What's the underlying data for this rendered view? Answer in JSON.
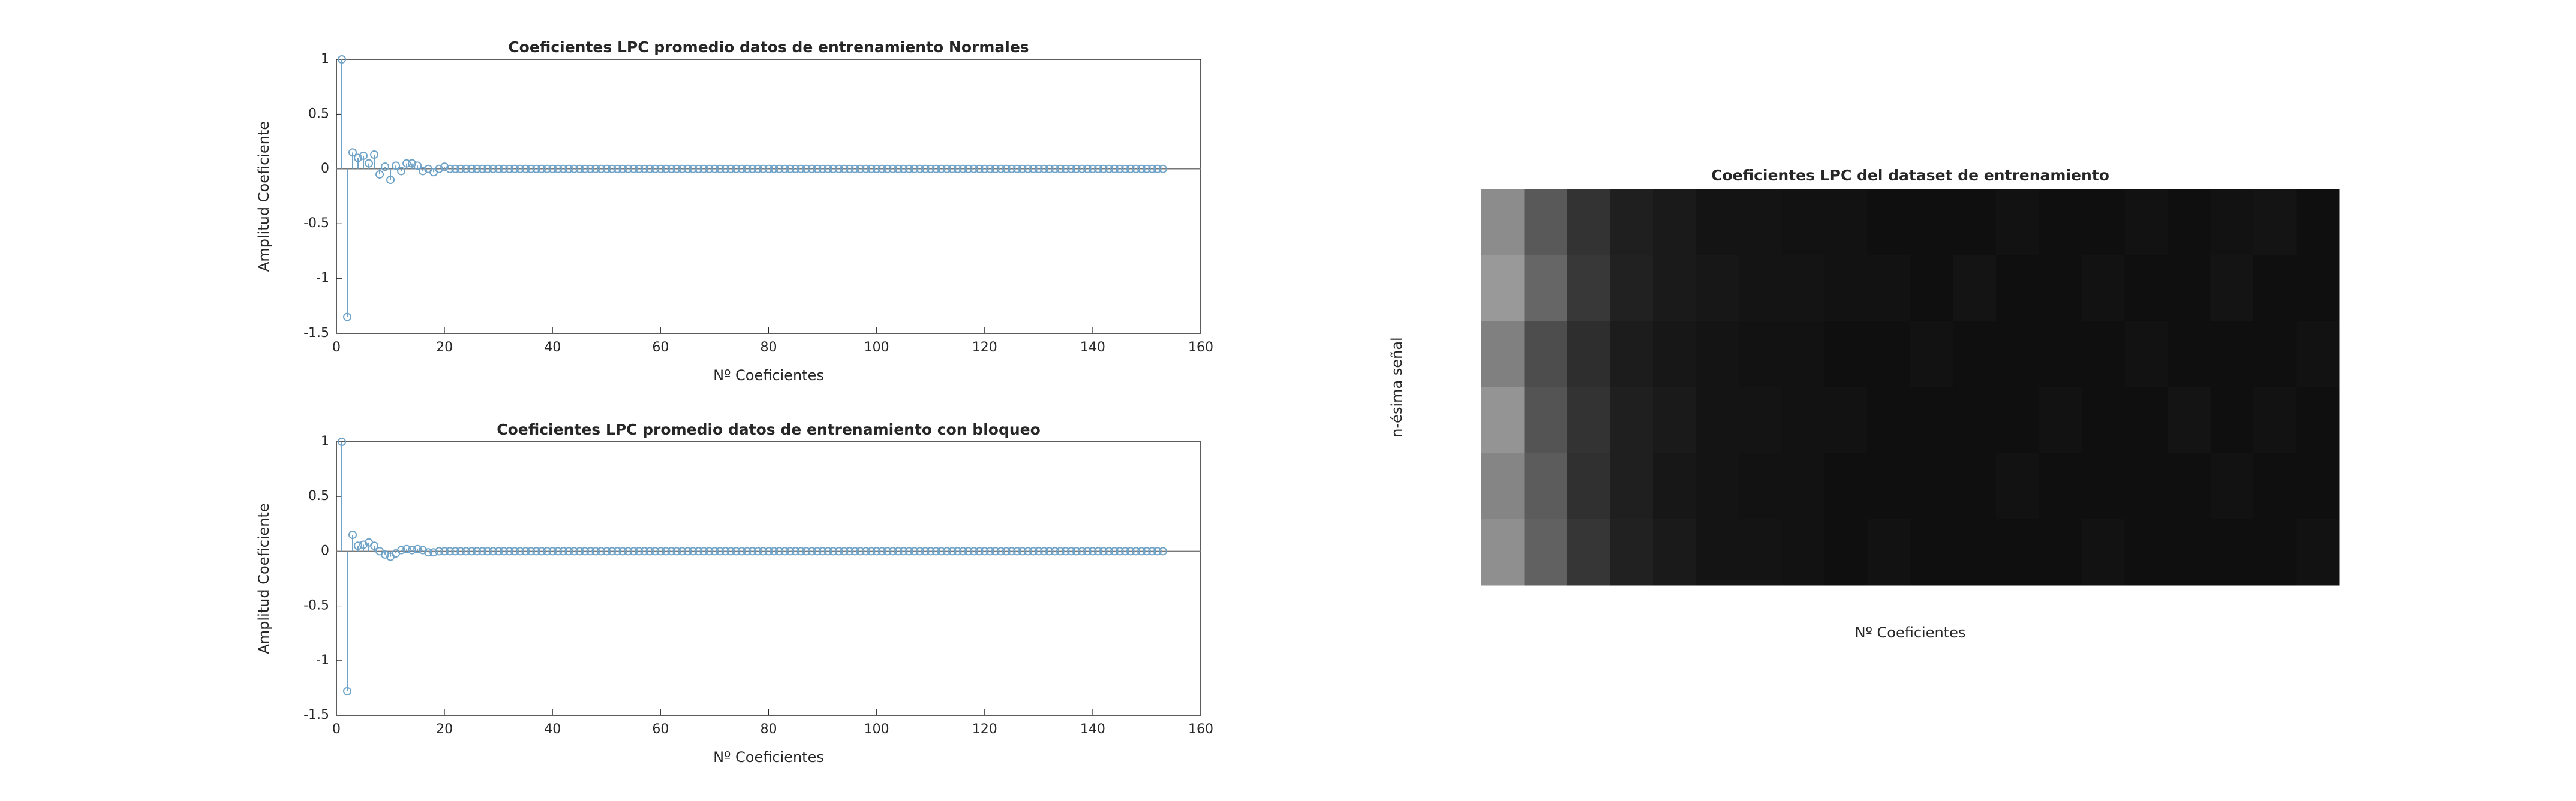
{
  "chart_data": [
    {
      "type": "stem",
      "title": "Coeficientes LPC promedio datos de entrenamiento Normales",
      "xlabel": "Nº Coeficientes",
      "ylabel": "Amplitud Coeficiente",
      "color": "#6fa3c8",
      "xlim": [
        0,
        160
      ],
      "ylim": [
        -1.5,
        1
      ],
      "xticks": [
        0,
        20,
        40,
        60,
        80,
        100,
        120,
        140,
        160
      ],
      "yticks": [
        -1.5,
        -1,
        -0.5,
        0,
        0.5,
        1
      ],
      "x": [
        1,
        2,
        3,
        4,
        5,
        6,
        7,
        8,
        9,
        10,
        11,
        12,
        13,
        14,
        15,
        16,
        17,
        18,
        19,
        20,
        21,
        22,
        23,
        24,
        25,
        26,
        27,
        28,
        29,
        30,
        31,
        32,
        33,
        34,
        35,
        36,
        37,
        38,
        39,
        40,
        41,
        42,
        43,
        44,
        45,
        46,
        47,
        48,
        49,
        50,
        51,
        52,
        53,
        54,
        55,
        56,
        57,
        58,
        59,
        60,
        61,
        62,
        63,
        64,
        65,
        66,
        67,
        68,
        69,
        70,
        71,
        72,
        73,
        74,
        75,
        76,
        77,
        78,
        79,
        80,
        81,
        82,
        83,
        84,
        85,
        86,
        87,
        88,
        89,
        90,
        91,
        92,
        93,
        94,
        95,
        96,
        97,
        98,
        99,
        100,
        101,
        102,
        103,
        104,
        105,
        106,
        107,
        108,
        109,
        110,
        111,
        112,
        113,
        114,
        115,
        116,
        117,
        118,
        119,
        120,
        121,
        122,
        123,
        124,
        125,
        126,
        127,
        128,
        129,
        130,
        131,
        132,
        133,
        134,
        135,
        136,
        137,
        138,
        139,
        140,
        141,
        142,
        143,
        144,
        145,
        146,
        147,
        148,
        149,
        150,
        151,
        152,
        153
      ],
      "values": [
        1,
        -1.35,
        0.15,
        0.1,
        0.12,
        0.05,
        0.13,
        -0.05,
        0.02,
        -0.1,
        0.03,
        -0.02,
        0.05,
        0.05,
        0.03,
        -0.02,
        0,
        -0.03,
        0,
        0.02,
        0,
        0,
        0,
        0,
        0,
        0,
        0,
        0,
        0,
        0,
        0,
        0,
        0,
        0,
        0,
        0,
        0,
        0,
        0,
        0,
        0,
        0,
        0,
        0,
        0,
        0,
        0,
        0,
        0,
        0,
        0,
        0,
        0,
        0,
        0,
        0,
        0,
        0,
        0,
        0,
        0,
        0,
        0,
        0,
        0,
        0,
        0,
        0,
        0,
        0,
        0,
        0,
        0,
        0,
        0,
        0,
        0,
        0,
        0,
        0,
        0,
        0,
        0,
        0,
        0,
        0,
        0,
        0,
        0,
        0,
        0,
        0,
        0,
        0,
        0,
        0,
        0,
        0,
        0,
        0,
        0,
        0,
        0,
        0,
        0,
        0,
        0,
        0,
        0,
        0,
        0,
        0,
        0,
        0,
        0,
        0,
        0,
        0,
        0,
        0,
        0,
        0,
        0,
        0,
        0,
        0,
        0,
        0,
        0,
        0,
        0,
        0,
        0,
        0,
        0,
        0,
        0,
        0,
        0,
        0,
        0,
        0,
        0,
        0,
        0,
        0,
        0,
        0,
        0,
        0,
        0,
        0,
        0
      ]
    },
    {
      "type": "stem",
      "title": "Coeficientes LPC promedio datos de entrenamiento con bloqueo",
      "xlabel": "Nº Coeficientes",
      "ylabel": "Amplitud Coeficiente",
      "color": "#6fa3c8",
      "xlim": [
        0,
        160
      ],
      "ylim": [
        -1.5,
        1
      ],
      "xticks": [
        0,
        20,
        40,
        60,
        80,
        100,
        120,
        140,
        160
      ],
      "yticks": [
        -1.5,
        -1,
        -0.5,
        0,
        0.5,
        1
      ],
      "x": [
        1,
        2,
        3,
        4,
        5,
        6,
        7,
        8,
        9,
        10,
        11,
        12,
        13,
        14,
        15,
        16,
        17,
        18,
        19,
        20,
        21,
        22,
        23,
        24,
        25,
        26,
        27,
        28,
        29,
        30,
        31,
        32,
        33,
        34,
        35,
        36,
        37,
        38,
        39,
        40,
        41,
        42,
        43,
        44,
        45,
        46,
        47,
        48,
        49,
        50,
        51,
        52,
        53,
        54,
        55,
        56,
        57,
        58,
        59,
        60,
        61,
        62,
        63,
        64,
        65,
        66,
        67,
        68,
        69,
        70,
        71,
        72,
        73,
        74,
        75,
        76,
        77,
        78,
        79,
        80,
        81,
        82,
        83,
        84,
        85,
        86,
        87,
        88,
        89,
        90,
        91,
        92,
        93,
        94,
        95,
        96,
        97,
        98,
        99,
        100,
        101,
        102,
        103,
        104,
        105,
        106,
        107,
        108,
        109,
        110,
        111,
        112,
        113,
        114,
        115,
        116,
        117,
        118,
        119,
        120,
        121,
        122,
        123,
        124,
        125,
        126,
        127,
        128,
        129,
        130,
        131,
        132,
        133,
        134,
        135,
        136,
        137,
        138,
        139,
        140,
        141,
        142,
        143,
        144,
        145,
        146,
        147,
        148,
        149,
        150,
        151,
        152,
        153
      ],
      "values": [
        1,
        -1.28,
        0.15,
        0.05,
        0.06,
        0.08,
        0.05,
        0,
        -0.03,
        -0.05,
        -0.02,
        0.01,
        0.02,
        0.01,
        0.02,
        0.01,
        -0.01,
        -0.01,
        0,
        0,
        0,
        0,
        0,
        0,
        0,
        0,
        0,
        0,
        0,
        0,
        0,
        0,
        0,
        0,
        0,
        0,
        0,
        0,
        0,
        0,
        0,
        0,
        0,
        0,
        0,
        0,
        0,
        0,
        0,
        0,
        0,
        0,
        0,
        0,
        0,
        0,
        0,
        0,
        0,
        0,
        0,
        0,
        0,
        0,
        0,
        0,
        0,
        0,
        0,
        0,
        0,
        0,
        0,
        0,
        0,
        0,
        0,
        0,
        0,
        0,
        0,
        0,
        0,
        0,
        0,
        0,
        0,
        0,
        0,
        0,
        0,
        0,
        0,
        0,
        0,
        0,
        0,
        0,
        0,
        0,
        0,
        0,
        0,
        0,
        0,
        0,
        0,
        0,
        0,
        0,
        0,
        0,
        0,
        0,
        0,
        0,
        0,
        0,
        0,
        0,
        0,
        0,
        0,
        0,
        0,
        0,
        0,
        0,
        0,
        0,
        0,
        0,
        0,
        0,
        0,
        0,
        0,
        0,
        0,
        0,
        0,
        0,
        0,
        0,
        0,
        0,
        0,
        0,
        0,
        0,
        0,
        0,
        0
      ]
    },
    {
      "type": "heatmap",
      "title": "Coeficientes LPC del dataset de entrenamiento",
      "xlabel": "Nº Coeficientes",
      "ylabel": "n-ésima señal",
      "z": [
        [
          0.55,
          0.35,
          0.2,
          0.12,
          0.1,
          0.08,
          0.08,
          0.07,
          0.07,
          0.06,
          0.06,
          0.06,
          0.07,
          0.06,
          0.06,
          0.07,
          0.06,
          0.07,
          0.08,
          0.06
        ],
        [
          0.6,
          0.4,
          0.22,
          0.13,
          0.1,
          0.09,
          0.08,
          0.08,
          0.07,
          0.07,
          0.06,
          0.08,
          0.06,
          0.06,
          0.07,
          0.06,
          0.06,
          0.08,
          0.06,
          0.06
        ],
        [
          0.5,
          0.3,
          0.18,
          0.11,
          0.09,
          0.08,
          0.07,
          0.07,
          0.06,
          0.06,
          0.07,
          0.06,
          0.06,
          0.06,
          0.06,
          0.07,
          0.06,
          0.06,
          0.06,
          0.07
        ],
        [
          0.58,
          0.33,
          0.2,
          0.12,
          0.1,
          0.08,
          0.08,
          0.07,
          0.07,
          0.06,
          0.06,
          0.06,
          0.06,
          0.07,
          0.06,
          0.06,
          0.08,
          0.06,
          0.07,
          0.06
        ],
        [
          0.52,
          0.36,
          0.19,
          0.12,
          0.09,
          0.08,
          0.07,
          0.07,
          0.06,
          0.06,
          0.06,
          0.06,
          0.07,
          0.06,
          0.06,
          0.06,
          0.06,
          0.07,
          0.06,
          0.06
        ],
        [
          0.56,
          0.38,
          0.21,
          0.13,
          0.1,
          0.08,
          0.08,
          0.07,
          0.06,
          0.07,
          0.06,
          0.06,
          0.06,
          0.06,
          0.07,
          0.06,
          0.06,
          0.06,
          0.06,
          0.07
        ]
      ]
    }
  ]
}
